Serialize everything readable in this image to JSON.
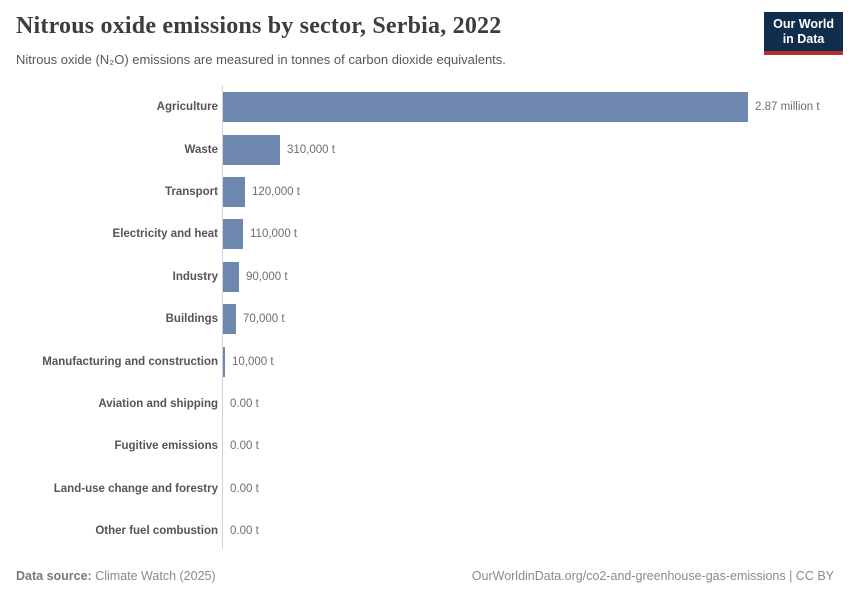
{
  "header": {
    "title": "Nitrous oxide emissions by sector, Serbia, 2022",
    "subtitle": "Nitrous oxide (N₂O) emissions are measured in tonnes of carbon dioxide equivalents.",
    "logo": {
      "line1": "Our World",
      "line2": "in Data",
      "background_color": "#102d4e",
      "accent_color": "#b5302f"
    }
  },
  "chart_data": {
    "type": "bar",
    "orientation": "horizontal",
    "title": "Nitrous oxide emissions by sector, Serbia, 2022",
    "subtitle": "Nitrous oxide (N₂O) emissions are measured in tonnes of carbon dioxide equivalents.",
    "categories": [
      "Agriculture",
      "Waste",
      "Transport",
      "Electricity and heat",
      "Industry",
      "Buildings",
      "Manufacturing and construction",
      "Aviation and shipping",
      "Fugitive emissions",
      "Land-use change and forestry",
      "Other fuel combustion"
    ],
    "values": [
      2870000,
      310000,
      120000,
      110000,
      90000,
      70000,
      10000,
      0,
      0,
      0,
      0
    ],
    "value_labels": [
      "2.87 million t",
      "310,000 t",
      "120,000 t",
      "110,000 t",
      "90,000 t",
      "70,000 t",
      "10,000 t",
      "0.00 t",
      "0.00 t",
      "0.00 t",
      "0.00 t"
    ],
    "unit": "tonnes of CO₂ equivalents",
    "xlim": [
      0,
      2870000
    ],
    "bar_color": "#6e87ae",
    "grid": false,
    "legend": "none"
  },
  "footer": {
    "data_source_label": "Data source:",
    "data_source_value": "Climate Watch (2025)",
    "right_text": "OurWorldinData.org/co2-and-greenhouse-gas-emissions | CC BY"
  }
}
